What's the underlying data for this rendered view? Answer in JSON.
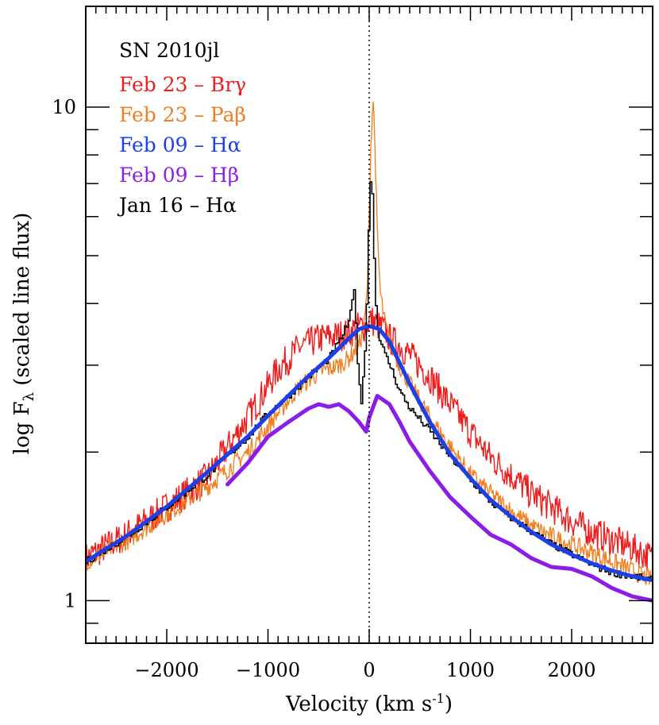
{
  "chart_data": {
    "type": "line",
    "title": "SN 2010jl",
    "xlabel": "Velocity (km s",
    "xlabel_sup": "-1",
    "xlabel_close": ")",
    "ylabel": "log F",
    "ylabel_sub": "λ",
    "ylabel_rest": " (scaled line flux)",
    "xlim": [
      -2800,
      2800
    ],
    "ylim": [
      0.82,
      16
    ],
    "yscale": "log",
    "x_ticks": [
      -2000,
      -1000,
      0,
      1000,
      2000
    ],
    "x_tick_labels": [
      "−2000",
      "−1000",
      "0",
      "1000",
      "2000"
    ],
    "y_ticks": [
      1,
      10
    ],
    "y_tick_labels": [
      "1",
      "10"
    ],
    "zero_line": true,
    "legend_placement": "top-left",
    "series": [
      {
        "name": "Feb 23 – Brγ",
        "color": "#ee1c1c",
        "style": "noisy",
        "x": [
          -2800,
          -2400,
          -2000,
          -1600,
          -1200,
          -900,
          -700,
          -500,
          -300,
          -200,
          -100,
          -30,
          0,
          30,
          60,
          100,
          150,
          200,
          300,
          400,
          600,
          800,
          1000,
          1200,
          1400,
          1600,
          1800,
          2000,
          2200,
          2400,
          2600,
          2800
        ],
        "values": [
          1.22,
          1.36,
          1.55,
          1.78,
          2.35,
          2.95,
          3.25,
          3.4,
          3.45,
          3.5,
          3.6,
          3.6,
          3.7,
          3.7,
          3.65,
          3.6,
          3.55,
          3.4,
          3.3,
          3.15,
          2.85,
          2.5,
          2.2,
          1.95,
          1.8,
          1.65,
          1.55,
          1.45,
          1.38,
          1.33,
          1.28,
          1.22
        ]
      },
      {
        "name": "Feb 23 – Paβ",
        "color": "#f07d1e",
        "style": "noisy",
        "x": [
          -2800,
          -2400,
          -2000,
          -1600,
          -1200,
          -900,
          -700,
          -500,
          -300,
          -200,
          -100,
          -50,
          -20,
          0,
          20,
          40,
          60,
          80,
          110,
          150,
          200,
          300,
          400,
          600,
          800,
          1000,
          1200,
          1400,
          1600,
          1800,
          2000,
          2200,
          2400,
          2600,
          2800
        ],
        "values": [
          1.2,
          1.32,
          1.5,
          1.7,
          2.0,
          2.4,
          2.7,
          2.9,
          3.0,
          3.1,
          3.3,
          3.6,
          4.2,
          6.0,
          9.0,
          10.4,
          8.0,
          5.5,
          4.2,
          3.7,
          3.35,
          3.0,
          2.75,
          2.35,
          2.05,
          1.8,
          1.65,
          1.52,
          1.42,
          1.35,
          1.3,
          1.25,
          1.2,
          1.15,
          1.1
        ]
      },
      {
        "name": "Feb 09 – Hα",
        "color": "#1b3fe8",
        "style": "thick",
        "x": [
          -2800,
          -2400,
          -2000,
          -1600,
          -1200,
          -1000,
          -800,
          -600,
          -400,
          -200,
          -100,
          0,
          100,
          200,
          400,
          600,
          800,
          1000,
          1200,
          1400,
          1600,
          1800,
          2000,
          2200,
          2400,
          2600,
          2800
        ],
        "values": [
          1.2,
          1.35,
          1.55,
          1.82,
          2.15,
          2.37,
          2.6,
          2.85,
          3.1,
          3.4,
          3.55,
          3.6,
          3.55,
          3.35,
          2.75,
          2.3,
          1.98,
          1.77,
          1.6,
          1.48,
          1.38,
          1.3,
          1.24,
          1.19,
          1.15,
          1.12,
          1.1
        ]
      },
      {
        "name": "Feb 09 – Hβ",
        "color": "#8a1ee8",
        "style": "thick",
        "x": [
          -1400,
          -1200,
          -1000,
          -800,
          -600,
          -500,
          -400,
          -300,
          -200,
          -100,
          -30,
          0,
          80,
          200,
          300,
          400,
          600,
          800,
          1000,
          1200,
          1400,
          1600,
          1800,
          2000,
          2200,
          2400,
          2600,
          2800
        ],
        "values": [
          1.72,
          1.9,
          2.15,
          2.3,
          2.45,
          2.5,
          2.47,
          2.5,
          2.42,
          2.3,
          2.2,
          2.35,
          2.6,
          2.5,
          2.3,
          2.1,
          1.83,
          1.62,
          1.48,
          1.36,
          1.3,
          1.22,
          1.17,
          1.16,
          1.12,
          1.06,
          1.02,
          1.0
        ]
      },
      {
        "name": "Jan 16 – Hα",
        "color": "#000000",
        "style": "step",
        "x": [
          -2800,
          -2400,
          -2000,
          -1600,
          -1200,
          -1000,
          -800,
          -600,
          -400,
          -300,
          -200,
          -150,
          -110,
          -80,
          -60,
          -40,
          -20,
          0,
          20,
          40,
          60,
          80,
          100,
          150,
          200,
          300,
          400,
          600,
          800,
          1000,
          1200,
          1400,
          1600,
          1800,
          2000,
          2200,
          2400,
          2600,
          2800
        ],
        "values": [
          1.2,
          1.35,
          1.55,
          1.8,
          2.15,
          2.4,
          2.6,
          2.85,
          3.1,
          3.35,
          3.7,
          4.3,
          2.8,
          2.5,
          3.0,
          3.3,
          4.6,
          6.8,
          7.6,
          5.2,
          4.0,
          3.6,
          3.4,
          3.15,
          3.0,
          2.65,
          2.45,
          2.2,
          1.95,
          1.75,
          1.58,
          1.47,
          1.38,
          1.3,
          1.24,
          1.18,
          1.14,
          1.12,
          1.1
        ]
      }
    ]
  }
}
